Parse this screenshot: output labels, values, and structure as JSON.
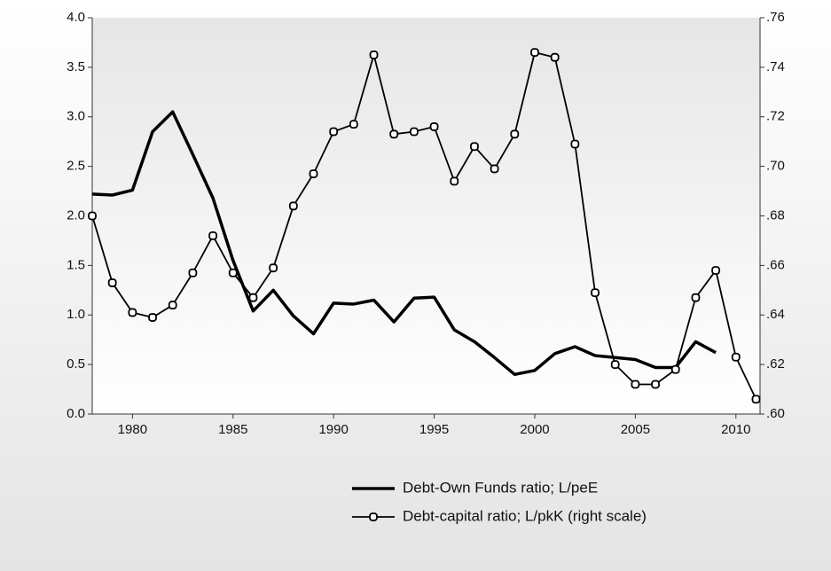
{
  "chart_data": {
    "type": "line",
    "x": [
      1978,
      1979,
      1980,
      1981,
      1982,
      1983,
      1984,
      1985,
      1986,
      1987,
      1988,
      1989,
      1990,
      1991,
      1992,
      1993,
      1994,
      1995,
      1996,
      1997,
      1998,
      1999,
      2000,
      2001,
      2002,
      2003,
      2004,
      2005,
      2006,
      2007,
      2008,
      2009,
      2010,
      2011
    ],
    "series": [
      {
        "name": "Debt-Own Funds ratio; L/peE",
        "color": "#000000",
        "values": [
          2.22,
          2.21,
          2.26,
          2.85,
          3.05,
          2.62,
          2.18,
          1.55,
          1.04,
          1.25,
          0.99,
          0.81,
          1.12,
          1.11,
          1.15,
          0.93,
          1.17,
          1.18,
          0.85,
          0.73,
          0.57,
          0.4,
          0.44,
          0.61,
          0.68,
          0.59,
          0.57,
          0.55,
          0.47,
          0.47,
          0.73,
          0.62,
          null,
          null
        ]
      },
      {
        "name": "Debt-capital ratio; L/pkK (right scale)",
        "color": "#000000",
        "axis": "y2",
        "values": [
          0.68,
          0.653,
          0.641,
          0.639,
          0.644,
          0.657,
          0.672,
          0.657,
          0.647,
          0.659,
          0.684,
          0.697,
          0.714,
          0.717,
          0.745,
          0.713,
          0.714,
          0.716,
          0.694,
          0.708,
          0.699,
          0.713,
          0.746,
          0.744,
          0.709,
          0.649,
          0.62,
          0.612,
          0.612,
          0.618,
          0.647,
          0.658,
          0.623,
          0.606
        ]
      }
    ],
    "xlim": [
      1978,
      2011.2
    ],
    "xticks": [
      1980,
      1985,
      1990,
      1995,
      2000,
      2005,
      2010
    ],
    "ylim": [
      0,
      4
    ],
    "yticks": [
      {
        "value": 0,
        "label": "0.0"
      },
      0.5,
      {
        "value": 1,
        "label": "1.0"
      },
      1.5,
      {
        "value": 2,
        "label": "2.0"
      },
      2.5,
      {
        "value": 3,
        "label": "3.0"
      },
      3.5,
      {
        "value": 4,
        "label": "4.0"
      }
    ],
    "y2lim": [
      0.6,
      0.76
    ],
    "y2ticks": [
      {
        "value": 0.6,
        "label": ".60"
      },
      {
        "value": 0.62,
        "label": ".62"
      },
      {
        "value": 0.64,
        "label": ".64"
      },
      {
        "value": 0.66,
        "label": ".66"
      },
      {
        "value": 0.68,
        "label": ".68"
      },
      {
        "value": 0.7,
        "label": ".70"
      },
      {
        "value": 0.72,
        "label": ".72"
      },
      {
        "value": 0.74,
        "label": ".74"
      },
      {
        "value": 0.76,
        "label": ".76"
      }
    ]
  }
}
